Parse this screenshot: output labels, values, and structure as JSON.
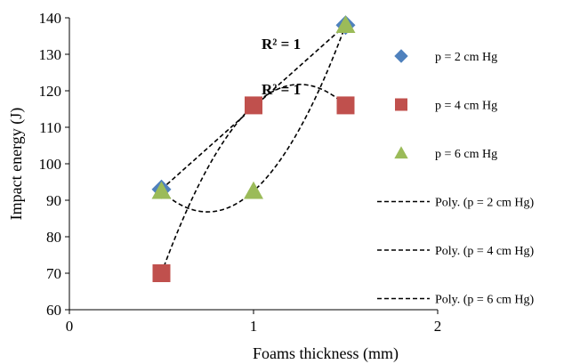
{
  "chart_data": {
    "type": "scatter",
    "xlabel": "Foams thickness (mm)",
    "ylabel": "Impact energy (J)",
    "xlim": [
      0,
      2
    ],
    "ylim": [
      60,
      140
    ],
    "xticks": [
      0,
      1,
      2
    ],
    "yticks": [
      60,
      70,
      80,
      90,
      100,
      110,
      120,
      130,
      140
    ],
    "grid": false,
    "legend_position": "right",
    "series": [
      {
        "name": "p = 2 cm Hg",
        "marker": "diamond",
        "color": "#4F81BD",
        "x": [
          0.5,
          1.5
        ],
        "y": [
          93,
          138
        ]
      },
      {
        "name": "p = 4 cm Hg",
        "marker": "square",
        "color": "#C0504D",
        "x": [
          0.5,
          1,
          1.5
        ],
        "y": [
          70,
          116,
          116
        ]
      },
      {
        "name": "p = 6 cm Hg",
        "marker": "triangle",
        "color": "#9BBB59",
        "x": [
          0.5,
          1,
          1.5
        ],
        "y": [
          92.5,
          92.5,
          138
        ]
      }
    ],
    "trendlines": [
      {
        "name": "Poly. (p = 2 cm Hg)",
        "style": "dashed",
        "x": [
          0.5,
          1.5
        ],
        "y": [
          93,
          138
        ]
      },
      {
        "name": "Poly. (p = 4 cm Hg)",
        "style": "dashed",
        "x": [
          0.5,
          1,
          1.5
        ],
        "y": [
          70,
          116,
          116
        ]
      },
      {
        "name": "Poly. (p = 6 cm Hg)",
        "style": "dashed",
        "x": [
          0.5,
          1,
          1.5
        ],
        "y": [
          92.5,
          92.5,
          138
        ]
      }
    ],
    "annotations": [
      {
        "text": "R² = 1",
        "x": 1.15,
        "y": 131.5
      },
      {
        "text": "R² = 1",
        "x": 1.15,
        "y": 119
      }
    ]
  }
}
